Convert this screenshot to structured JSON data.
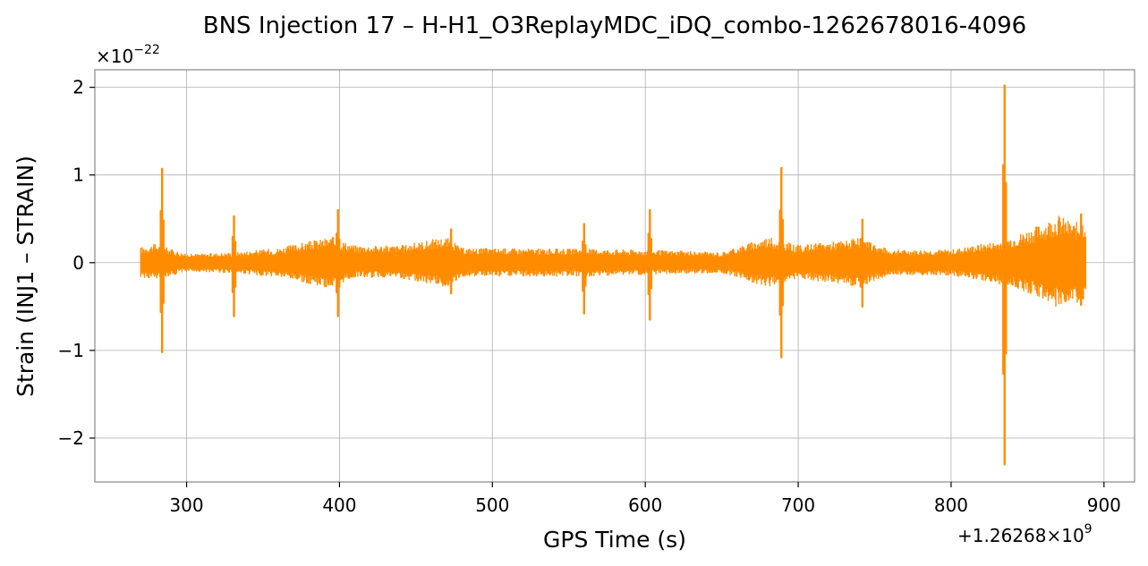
{
  "chart_data": {
    "type": "line",
    "title": "BNS Injection 17 – H-H1_O3ReplayMDC_iDQ_combo-1262678016-4096",
    "xlabel": "GPS Time (s)",
    "ylabel": "Strain (INJ1 – STRAIN)",
    "x_offset_label": "+1.26268×10",
    "x_offset_exponent": "9",
    "y_scale_label": "×10",
    "y_scale_exponent": "−22",
    "x_ticks": [
      300,
      400,
      500,
      600,
      700,
      800,
      900
    ],
    "x_tick_labels": [
      "300",
      "400",
      "500",
      "600",
      "700",
      "800",
      "900"
    ],
    "y_ticks": [
      -2,
      -1,
      0,
      1,
      2
    ],
    "y_tick_labels": [
      "−2",
      "−1",
      "0",
      "1",
      "2"
    ],
    "xlim": [
      240,
      920
    ],
    "ylim": [
      -2.5,
      2.2
    ],
    "grid": true,
    "series": [
      {
        "color": "#ff8c00",
        "x_range": [
          270,
          888
        ],
        "envelope": [
          {
            "x": 270,
            "upper": 0.18,
            "lower": -0.17
          },
          {
            "x": 280,
            "upper": 0.22,
            "lower": -0.2
          },
          {
            "x": 300,
            "upper": 0.1,
            "lower": -0.1
          },
          {
            "x": 330,
            "upper": 0.12,
            "lower": -0.12
          },
          {
            "x": 360,
            "upper": 0.17,
            "lower": -0.17
          },
          {
            "x": 395,
            "upper": 0.3,
            "lower": -0.3
          },
          {
            "x": 410,
            "upper": 0.2,
            "lower": -0.17
          },
          {
            "x": 440,
            "upper": 0.2,
            "lower": -0.18
          },
          {
            "x": 470,
            "upper": 0.3,
            "lower": -0.28
          },
          {
            "x": 480,
            "upper": 0.17,
            "lower": -0.16
          },
          {
            "x": 560,
            "upper": 0.16,
            "lower": -0.16
          },
          {
            "x": 600,
            "upper": 0.15,
            "lower": -0.14
          },
          {
            "x": 650,
            "upper": 0.12,
            "lower": -0.12
          },
          {
            "x": 680,
            "upper": 0.3,
            "lower": -0.28
          },
          {
            "x": 700,
            "upper": 0.2,
            "lower": -0.18
          },
          {
            "x": 740,
            "upper": 0.28,
            "lower": -0.28
          },
          {
            "x": 760,
            "upper": 0.15,
            "lower": -0.14
          },
          {
            "x": 800,
            "upper": 0.15,
            "lower": -0.15
          },
          {
            "x": 830,
            "upper": 0.25,
            "lower": -0.24
          },
          {
            "x": 840,
            "upper": 0.3,
            "lower": -0.28
          },
          {
            "x": 860,
            "upper": 0.45,
            "lower": -0.42
          },
          {
            "x": 870,
            "upper": 0.55,
            "lower": -0.52
          },
          {
            "x": 880,
            "upper": 0.45,
            "lower": -0.45
          },
          {
            "x": 888,
            "upper": 0.5,
            "lower": -0.5
          }
        ],
        "glitches": [
          {
            "x": 284,
            "max": 1.07,
            "min": -1.02
          },
          {
            "x": 331,
            "max": 0.53,
            "min": -0.61
          },
          {
            "x": 399,
            "max": 0.6,
            "min": -0.61
          },
          {
            "x": 473,
            "max": 0.38,
            "min": -0.35
          },
          {
            "x": 560,
            "max": 0.44,
            "min": -0.58
          },
          {
            "x": 603,
            "max": 0.6,
            "min": -0.65
          },
          {
            "x": 689,
            "max": 1.08,
            "min": -1.08
          },
          {
            "x": 742,
            "max": 0.49,
            "min": -0.5
          },
          {
            "x": 835,
            "max": 2.02,
            "min": -2.3
          },
          {
            "x": 885,
            "max": 0.55,
            "min": -0.48
          }
        ]
      }
    ]
  }
}
